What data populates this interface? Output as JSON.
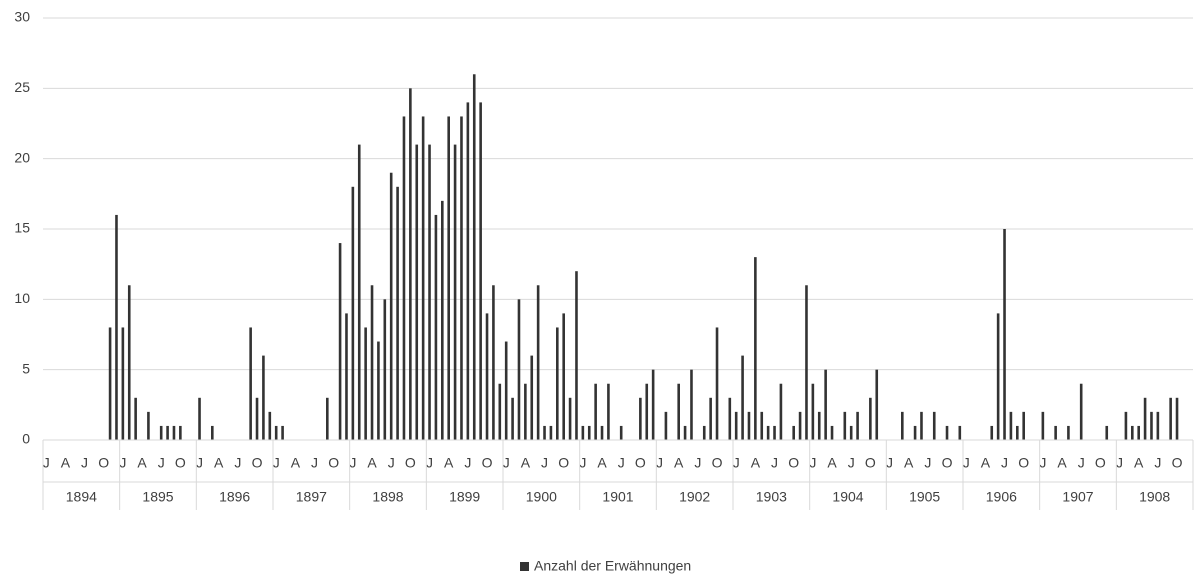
{
  "chart_data": {
    "type": "bar",
    "categories": [
      "J",
      null,
      null,
      "A",
      null,
      null,
      "J",
      null,
      null,
      "O",
      null,
      null,
      "J",
      null,
      null,
      "A",
      null,
      null,
      "J",
      null,
      null,
      "O",
      null,
      null,
      "J",
      null,
      null,
      "A",
      null,
      null,
      "J",
      null,
      null,
      "O",
      null,
      null,
      "J",
      null,
      null,
      "A",
      null,
      null,
      "J",
      null,
      null,
      "O",
      null,
      null,
      "J",
      null,
      null,
      "A",
      null,
      null,
      "J",
      null,
      null,
      "O",
      null,
      null,
      "J",
      null,
      null,
      "A",
      null,
      null,
      "J",
      null,
      null,
      "O",
      null,
      null,
      "J",
      null,
      null,
      "A",
      null,
      null,
      "J",
      null,
      null,
      "O",
      null,
      null,
      "J",
      null,
      null,
      "A",
      null,
      null,
      "J",
      null,
      null,
      "O",
      null,
      null,
      "J",
      null,
      null,
      "A",
      null,
      null,
      "J",
      null,
      null,
      "O",
      null,
      null,
      "J",
      null,
      null,
      "A",
      null,
      null,
      "J",
      null,
      null,
      "O",
      null,
      null,
      "J",
      null,
      null,
      "A",
      null,
      null,
      "J",
      null,
      null,
      "O",
      null,
      null,
      "J",
      null,
      null,
      "A",
      null,
      null,
      "J",
      null,
      null,
      "O",
      null,
      null,
      "J",
      null,
      null,
      "A",
      null,
      null,
      "J",
      null,
      null,
      "O",
      null,
      null,
      "J",
      null,
      null,
      "A",
      null,
      null,
      "J",
      null,
      null,
      "O",
      null,
      null,
      "J",
      null,
      null,
      "A",
      null,
      null,
      "J",
      null,
      null,
      "O",
      null,
      null
    ],
    "years": [
      "1894",
      "1895",
      "1896",
      "1897",
      "1898",
      "1899",
      "1900",
      "1901",
      "1902",
      "1903",
      "1904",
      "1905",
      "1906",
      "1907",
      "1908"
    ],
    "series": [
      {
        "name": "Anzahl der Erwähnungen",
        "color": "#333333",
        "values": [
          0,
          0,
          0,
          0,
          0,
          0,
          0,
          0,
          0,
          0,
          8,
          16,
          8,
          11,
          3,
          0,
          2,
          0,
          1,
          1,
          1,
          1,
          0,
          0,
          3,
          0,
          1,
          0,
          0,
          0,
          0,
          0,
          8,
          3,
          6,
          2,
          1,
          1,
          0,
          0,
          0,
          0,
          0,
          0,
          3,
          0,
          14,
          9,
          18,
          21,
          8,
          11,
          7,
          10,
          19,
          18,
          23,
          25,
          21,
          23,
          21,
          16,
          17,
          23,
          21,
          23,
          24,
          26,
          24,
          9,
          11,
          4,
          7,
          3,
          10,
          4,
          6,
          11,
          1,
          1,
          8,
          9,
          3,
          12,
          1,
          1,
          4,
          1,
          4,
          0,
          1,
          0,
          0,
          3,
          4,
          5,
          0,
          2,
          0,
          4,
          1,
          5,
          0,
          1,
          3,
          8,
          0,
          3,
          2,
          6,
          2,
          13,
          2,
          1,
          1,
          4,
          0,
          1,
          2,
          11,
          4,
          2,
          5,
          1,
          0,
          2,
          1,
          2,
          0,
          3,
          5,
          0,
          0,
          0,
          2,
          0,
          1,
          2,
          0,
          2,
          0,
          1,
          0,
          1,
          0,
          0,
          0,
          0,
          1,
          9,
          15,
          2,
          1,
          2,
          0,
          0,
          2,
          0,
          1,
          0,
          1,
          0,
          4,
          0,
          0,
          0,
          1,
          0,
          0,
          2,
          1,
          1,
          3,
          2,
          2,
          0,
          3,
          3,
          0,
          0
        ]
      }
    ],
    "ylim": [
      0,
      30
    ],
    "yticks": [
      0,
      5,
      10,
      15,
      20,
      25,
      30
    ],
    "grid": true,
    "legend": "bottom"
  }
}
